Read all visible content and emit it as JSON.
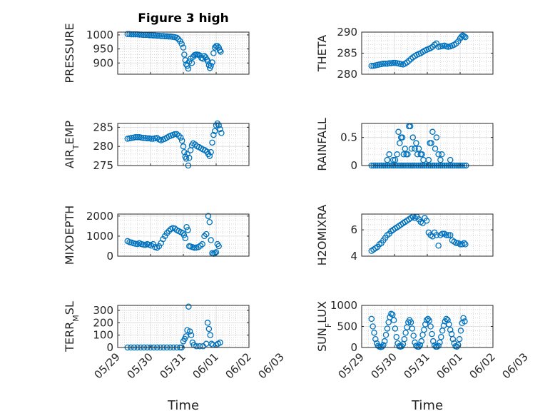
{
  "figure": {
    "title": "Figure 3 high",
    "x_label": "Time",
    "x_ticks": [
      "05/29",
      "05/30",
      "05/31",
      "06/01",
      "06/02",
      "06/03"
    ]
  },
  "colors": {
    "marker": "#0072BD",
    "axis": "#262626",
    "grid": "#c8c8c8",
    "background": "#ffffff"
  },
  "chart_data": [
    {
      "type": "scatter",
      "name": "PRESSURE",
      "ylabel": "PRESSURE",
      "ylabel_sub": null,
      "ylim": [
        860,
        1010
      ],
      "yticks": [
        900,
        950,
        1000
      ],
      "xlim": [
        0,
        4
      ],
      "grid": true,
      "x": [
        0.3,
        0.36,
        0.42,
        0.48,
        0.54,
        0.6,
        0.66,
        0.72,
        0.78,
        0.84,
        0.9,
        0.96,
        1.02,
        1.08,
        1.14,
        1.2,
        1.26,
        1.32,
        1.38,
        1.44,
        1.5,
        1.56,
        1.62,
        1.68,
        1.74,
        1.8,
        1.85,
        1.9,
        1.95,
        2.0,
        2.03,
        2.06,
        2.09,
        2.12,
        2.15,
        2.18,
        2.22,
        2.26,
        2.3,
        2.34,
        2.38,
        2.42,
        2.46,
        2.5,
        2.55,
        2.6,
        2.64,
        2.68,
        2.72,
        2.75,
        2.78,
        2.81,
        2.84,
        2.88,
        2.92,
        2.96,
        3.0,
        3.04,
        3.08,
        3.11,
        3.14
      ],
      "y": [
        1003,
        1003,
        1002,
        1002,
        1002,
        1002,
        1001,
        1001,
        1000,
        1000,
        1000,
        999,
        999,
        998,
        998,
        997,
        997,
        996,
        996,
        995,
        995,
        994,
        994,
        993,
        992,
        990,
        985,
        978,
        968,
        955,
        930,
        910,
        895,
        890,
        880,
        905,
        915,
        900,
        922,
        928,
        930,
        930,
        929,
        927,
        918,
        915,
        925,
        920,
        912,
        905,
        892,
        882,
        890,
        902,
        935,
        955,
        960,
        960,
        955,
        945,
        940
      ]
    },
    {
      "type": "scatter",
      "name": "THETA",
      "ylabel": "THETA",
      "ylabel_sub": null,
      "ylim": [
        280,
        290
      ],
      "yticks": [
        280,
        285,
        290
      ],
      "xlim": [
        0,
        4
      ],
      "grid": true,
      "x": [
        0.3,
        0.36,
        0.42,
        0.48,
        0.54,
        0.6,
        0.66,
        0.72,
        0.78,
        0.84,
        0.9,
        0.96,
        1.02,
        1.08,
        1.14,
        1.2,
        1.26,
        1.32,
        1.38,
        1.44,
        1.5,
        1.56,
        1.62,
        1.68,
        1.74,
        1.8,
        1.86,
        1.92,
        1.98,
        2.04,
        2.1,
        2.16,
        2.22,
        2.28,
        2.34,
        2.4,
        2.46,
        2.52,
        2.58,
        2.64,
        2.7,
        2.76,
        2.82,
        2.88,
        2.94,
        3.0,
        3.04,
        3.08,
        3.12,
        3.16
      ],
      "y": [
        282.0,
        282.0,
        282.1,
        282.2,
        282.3,
        282.4,
        282.5,
        282.5,
        282.5,
        282.6,
        282.6,
        282.7,
        282.7,
        282.6,
        282.5,
        282.4,
        282.3,
        282.5,
        282.8,
        283.2,
        283.6,
        284.0,
        284.3,
        284.6,
        284.8,
        285.0,
        285.3,
        285.6,
        285.8,
        286.0,
        286.2,
        286.5,
        287.0,
        287.3,
        286.5,
        286.6,
        286.7,
        286.8,
        286.6,
        286.5,
        286.6,
        286.8,
        287.0,
        287.3,
        287.8,
        288.5,
        288.9,
        289.2,
        289.0,
        288.8
      ]
    },
    {
      "type": "scatter",
      "name": "AIR_TEMP",
      "ylabel": "AIR",
      "ylabel_sub": "T",
      "ylabel_tail": "EMP",
      "ylim": [
        275,
        286
      ],
      "yticks": [
        275,
        280,
        285
      ],
      "xlim": [
        0,
        4
      ],
      "grid": true,
      "x": [
        0.3,
        0.36,
        0.42,
        0.48,
        0.54,
        0.6,
        0.66,
        0.72,
        0.78,
        0.84,
        0.9,
        0.96,
        1.02,
        1.08,
        1.14,
        1.2,
        1.26,
        1.32,
        1.38,
        1.44,
        1.5,
        1.56,
        1.62,
        1.68,
        1.74,
        1.8,
        1.86,
        1.92,
        1.96,
        2.0,
        2.03,
        2.06,
        2.09,
        2.12,
        2.15,
        2.18,
        2.22,
        2.26,
        2.3,
        2.36,
        2.42,
        2.48,
        2.54,
        2.6,
        2.66,
        2.72,
        2.76,
        2.8,
        2.84,
        2.88,
        2.92,
        2.96,
        3.0,
        3.04,
        3.08,
        3.12,
        3.16
      ],
      "y": [
        282.0,
        282.1,
        282.2,
        282.3,
        282.4,
        282.4,
        282.4,
        282.3,
        282.2,
        282.2,
        282.1,
        282.1,
        282.0,
        282.0,
        282.1,
        282.2,
        281.8,
        281.6,
        281.8,
        282.0,
        282.3,
        282.6,
        282.8,
        283.0,
        283.2,
        283.2,
        282.8,
        282.3,
        281.5,
        280.0,
        278.5,
        277.3,
        276.8,
        278.0,
        275.0,
        277.0,
        279.0,
        280.3,
        280.8,
        280.5,
        280.0,
        279.8,
        279.5,
        279.2,
        279.0,
        278.6,
        278.0,
        277.5,
        278.5,
        281.0,
        283.0,
        284.0,
        285.5,
        286.0,
        285.5,
        284.5,
        283.5
      ]
    },
    {
      "type": "scatter",
      "name": "RAINFALL",
      "ylabel": "RAINFALL",
      "ylabel_sub": null,
      "ylim": [
        0,
        0.75
      ],
      "yticks": [
        0,
        0.5
      ],
      "xlim": [
        0,
        4
      ],
      "grid": true,
      "x": [
        0.3,
        0.36,
        0.42,
        0.48,
        0.54,
        0.6,
        0.66,
        0.72,
        0.78,
        0.84,
        0.9,
        0.96,
        1.02,
        1.08,
        1.14,
        1.2,
        1.26,
        1.32,
        1.38,
        1.44,
        1.5,
        1.56,
        1.62,
        1.68,
        1.74,
        1.8,
        1.86,
        1.92,
        1.98,
        2.04,
        2.1,
        2.16,
        2.22,
        2.28,
        2.34,
        2.4,
        2.46,
        2.52,
        2.58,
        2.64,
        2.7,
        2.76,
        2.82,
        2.88,
        2.94,
        3.0,
        3.06,
        3.12,
        3.18,
        0.78,
        0.84,
        0.96,
        1.02,
        1.08,
        1.12,
        1.16,
        1.2,
        1.24,
        1.28,
        1.32,
        1.36,
        1.4,
        1.44,
        1.48,
        1.52,
        1.56,
        1.62,
        1.66,
        1.7,
        1.74,
        1.8,
        1.84,
        1.88,
        2.04,
        2.08,
        2.12,
        2.16,
        2.24,
        2.28,
        2.34,
        2.4,
        2.44,
        2.7
      ],
      "y": [
        0,
        0,
        0,
        0,
        0,
        0,
        0,
        0,
        0,
        0,
        0,
        0,
        0,
        0,
        0,
        0,
        0,
        0,
        0,
        0,
        0,
        0,
        0,
        0,
        0,
        0,
        0,
        0,
        0,
        0,
        0,
        0,
        0,
        0,
        0,
        0,
        0,
        0,
        0,
        0,
        0,
        0,
        0,
        0,
        0,
        0,
        0,
        0,
        0,
        0.1,
        0.2,
        0.1,
        0.1,
        0.2,
        0.6,
        0.4,
        0.5,
        0.5,
        0.2,
        0.3,
        0.2,
        0.2,
        0.7,
        0.7,
        0.3,
        0.5,
        0.3,
        0.4,
        0.2,
        0.3,
        0.2,
        0.2,
        0.1,
        0.1,
        0.4,
        0.4,
        0.6,
        0.3,
        0.5,
        0.2,
        0.1,
        0.2,
        0.1
      ]
    },
    {
      "type": "scatter",
      "name": "MIXDEPTH",
      "ylabel": "MIXDEPTH",
      "ylabel_sub": null,
      "ylim": [
        0,
        2100
      ],
      "yticks": [
        0,
        1000,
        2000
      ],
      "xlim": [
        0,
        4
      ],
      "grid": true,
      "x": [
        0.3,
        0.36,
        0.42,
        0.48,
        0.54,
        0.6,
        0.66,
        0.72,
        0.78,
        0.84,
        0.9,
        0.96,
        1.02,
        1.08,
        1.14,
        1.2,
        1.26,
        1.32,
        1.38,
        1.44,
        1.5,
        1.56,
        1.62,
        1.68,
        1.74,
        1.8,
        1.86,
        1.92,
        1.98,
        2.02,
        2.06,
        2.1,
        2.14,
        2.18,
        2.22,
        2.28,
        2.34,
        2.4,
        2.46,
        2.52,
        2.58,
        2.64,
        2.7,
        2.76,
        2.8,
        2.84,
        2.88,
        2.92,
        2.96,
        3.0,
        3.04,
        3.08
      ],
      "y": [
        750,
        700,
        680,
        640,
        620,
        600,
        650,
        600,
        580,
        560,
        600,
        570,
        530,
        600,
        450,
        420,
        500,
        650,
        850,
        1000,
        1150,
        1250,
        1350,
        1400,
        1380,
        1300,
        1250,
        1200,
        1150,
        1050,
        900,
        1450,
        1300,
        500,
        480,
        450,
        420,
        430,
        450,
        520,
        600,
        1000,
        1100,
        2000,
        1700,
        800,
        150,
        120,
        160,
        200,
        600,
        500
      ]
    },
    {
      "type": "scatter",
      "name": "H2OMIXRA",
      "ylabel": "H2OMIXRA",
      "ylabel_sub": null,
      "ylim": [
        4,
        7.2
      ],
      "yticks": [
        4,
        6
      ],
      "xlim": [
        0,
        4
      ],
      "grid": true,
      "x": [
        0.3,
        0.36,
        0.42,
        0.48,
        0.54,
        0.6,
        0.66,
        0.72,
        0.78,
        0.84,
        0.9,
        0.96,
        1.02,
        1.08,
        1.14,
        1.2,
        1.26,
        1.32,
        1.38,
        1.44,
        1.5,
        1.56,
        1.62,
        1.68,
        1.74,
        1.8,
        1.86,
        1.92,
        1.98,
        2.04,
        2.1,
        2.16,
        2.22,
        2.28,
        2.34,
        2.4,
        2.46,
        2.52,
        2.58,
        2.64,
        2.7,
        2.76,
        2.82,
        2.88,
        2.94,
        3.0,
        3.06,
        3.12,
        3.16
      ],
      "y": [
        4.4,
        4.5,
        4.6,
        4.7,
        4.9,
        5.0,
        5.2,
        5.4,
        5.6,
        5.7,
        5.9,
        6.0,
        6.1,
        6.2,
        6.3,
        6.4,
        6.5,
        6.6,
        6.7,
        6.8,
        6.9,
        7.0,
        6.9,
        7.0,
        6.8,
        6.6,
        6.5,
        6.9,
        6.7,
        5.8,
        5.6,
        5.5,
        5.8,
        5.6,
        4.8,
        5.6,
        5.7,
        5.7,
        5.6,
        5.6,
        5.6,
        5.2,
        5.1,
        5.0,
        5.0,
        4.9,
        4.9,
        5.0,
        4.9
      ]
    },
    {
      "type": "scatter",
      "name": "TERR_MSL",
      "ylabel": "TERR",
      "ylabel_sub": "M",
      "ylabel_tail": "SL",
      "ylim": [
        0,
        340
      ],
      "yticks": [
        0,
        100,
        200,
        300
      ],
      "xlim": [
        0,
        4
      ],
      "grid": true,
      "x": [
        0.3,
        0.4,
        0.5,
        0.6,
        0.7,
        0.8,
        0.9,
        1.0,
        1.1,
        1.2,
        1.3,
        1.4,
        1.5,
        1.6,
        1.7,
        1.8,
        1.9,
        1.95,
        2.0,
        2.04,
        2.08,
        2.12,
        2.16,
        2.2,
        2.24,
        2.28,
        2.32,
        2.4,
        2.5,
        2.6,
        2.7,
        2.74,
        2.78,
        2.82,
        2.86,
        2.9,
        3.0,
        3.06,
        3.12
      ],
      "y": [
        0,
        0,
        0,
        0,
        0,
        0,
        0,
        0,
        0,
        0,
        0,
        0,
        0,
        0,
        0,
        0,
        0,
        0,
        50,
        70,
        90,
        140,
        330,
        130,
        100,
        40,
        20,
        10,
        10,
        10,
        30,
        200,
        150,
        100,
        30,
        20,
        20,
        30,
        40
      ]
    },
    {
      "type": "scatter",
      "name": "SUN_FLUX",
      "ylabel": "SUN",
      "ylabel_sub": "F",
      "ylabel_tail": "LUX",
      "ylim": [
        0,
        1000
      ],
      "yticks": [
        0,
        500,
        1000
      ],
      "xlim": [
        0,
        4
      ],
      "grid": true,
      "x": [
        0.3,
        0.34,
        0.38,
        0.42,
        0.46,
        0.5,
        0.54,
        0.58,
        0.62,
        0.66,
        0.7,
        0.74,
        0.78,
        0.82,
        0.86,
        0.9,
        0.94,
        0.98,
        1.02,
        1.06,
        1.1,
        1.14,
        1.18,
        1.22,
        1.26,
        1.3,
        1.34,
        1.38,
        1.42,
        1.46,
        1.5,
        1.54,
        1.58,
        1.62,
        1.66,
        1.7,
        1.74,
        1.78,
        1.82,
        1.86,
        1.9,
        1.94,
        1.98,
        2.02,
        2.06,
        2.1,
        2.14,
        2.18,
        2.22,
        2.26,
        2.3,
        2.34,
        2.38,
        2.42,
        2.46,
        2.5,
        2.54,
        2.58,
        2.62,
        2.66,
        2.7,
        2.74,
        2.78,
        2.82,
        2.86,
        2.9,
        2.94,
        2.98,
        3.02,
        3.06,
        3.1,
        3.14
      ],
      "y": [
        680,
        500,
        350,
        200,
        100,
        40,
        20,
        10,
        20,
        60,
        150,
        300,
        450,
        600,
        720,
        800,
        780,
        650,
        450,
        250,
        100,
        30,
        20,
        30,
        80,
        200,
        350,
        480,
        600,
        650,
        600,
        450,
        280,
        120,
        40,
        20,
        20,
        60,
        150,
        300,
        420,
        550,
        650,
        680,
        640,
        500,
        320,
        150,
        50,
        20,
        20,
        40,
        120,
        250,
        400,
        520,
        620,
        680,
        650,
        550,
        420,
        320,
        200,
        100,
        30,
        20,
        60,
        200,
        400,
        580,
        700,
        620
      ]
    }
  ]
}
